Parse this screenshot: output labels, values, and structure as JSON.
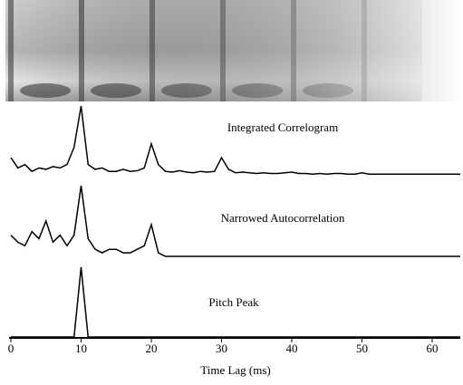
{
  "chart_data": {
    "type": "line",
    "xlabel": "Time Lag (ms)",
    "x": [
      0,
      1,
      2,
      3,
      4,
      5,
      6,
      7,
      8,
      9,
      10,
      11,
      12,
      13,
      14,
      15,
      16,
      17,
      18,
      19,
      20,
      21,
      22,
      23,
      24,
      25,
      26,
      27,
      28,
      29,
      30,
      31,
      32,
      33,
      34,
      35,
      36,
      37,
      38,
      39,
      40,
      41,
      42,
      43,
      44,
      45,
      46,
      47,
      48,
      49,
      50,
      51,
      52,
      53,
      54,
      55,
      56,
      57,
      58,
      59,
      60,
      61,
      62,
      63,
      64
    ],
    "xlim": [
      0,
      64
    ],
    "xticks": [
      0,
      10,
      20,
      30,
      40,
      50,
      60
    ],
    "ylim": [
      0,
      1
    ],
    "series": [
      {
        "name": "Integrated Correlogram",
        "color": "#000000",
        "values": [
          0.25,
          0.1,
          0.15,
          0.05,
          0.1,
          0.08,
          0.12,
          0.1,
          0.15,
          0.4,
          1.0,
          0.15,
          0.08,
          0.1,
          0.05,
          0.05,
          0.08,
          0.05,
          0.06,
          0.1,
          0.45,
          0.15,
          0.05,
          0.04,
          0.06,
          0.04,
          0.03,
          0.05,
          0.04,
          0.05,
          0.25,
          0.08,
          0.03,
          0.04,
          0.03,
          0.02,
          0.03,
          0.02,
          0.02,
          0.03,
          0.04,
          0.02,
          0.02,
          0.01,
          0.02,
          0.01,
          0.02,
          0.02,
          0.01,
          0.01,
          0.03,
          0.01,
          0.01,
          0.01,
          0.01,
          0.01,
          0.01,
          0.01,
          0.01,
          0.01,
          0.01,
          0.01,
          0.01,
          0.01,
          0.01
        ]
      },
      {
        "name": "Narrowed Autocorrelation",
        "color": "#000000",
        "values": [
          0.3,
          0.2,
          0.15,
          0.35,
          0.25,
          0.5,
          0.2,
          0.3,
          0.15,
          0.3,
          1.0,
          0.25,
          0.1,
          0.05,
          0.1,
          0.1,
          0.05,
          0.05,
          0.1,
          0.15,
          0.45,
          0.05,
          0,
          0,
          0,
          0,
          0,
          0,
          0,
          0,
          0,
          0,
          0,
          0,
          0,
          0,
          0,
          0,
          0,
          0,
          0,
          0,
          0,
          0,
          0,
          0,
          0,
          0,
          0,
          0,
          0,
          0,
          0,
          0,
          0,
          0,
          0,
          0,
          0,
          0,
          0,
          0,
          0,
          0,
          0
        ]
      },
      {
        "name": "Pitch Peak",
        "color": "#000000",
        "values": [
          0,
          0,
          0,
          0,
          0,
          0,
          0,
          0,
          0,
          0,
          1,
          0,
          0,
          0,
          0,
          0,
          0,
          0,
          0,
          0,
          0,
          0,
          0,
          0,
          0,
          0,
          0,
          0,
          0,
          0,
          0,
          0,
          0,
          0,
          0,
          0,
          0,
          0,
          0,
          0,
          0,
          0,
          0,
          0,
          0,
          0,
          0,
          0,
          0,
          0,
          0,
          0,
          0,
          0,
          0,
          0,
          0,
          0,
          0,
          0,
          0,
          0,
          0,
          0,
          0
        ]
      }
    ]
  }
}
